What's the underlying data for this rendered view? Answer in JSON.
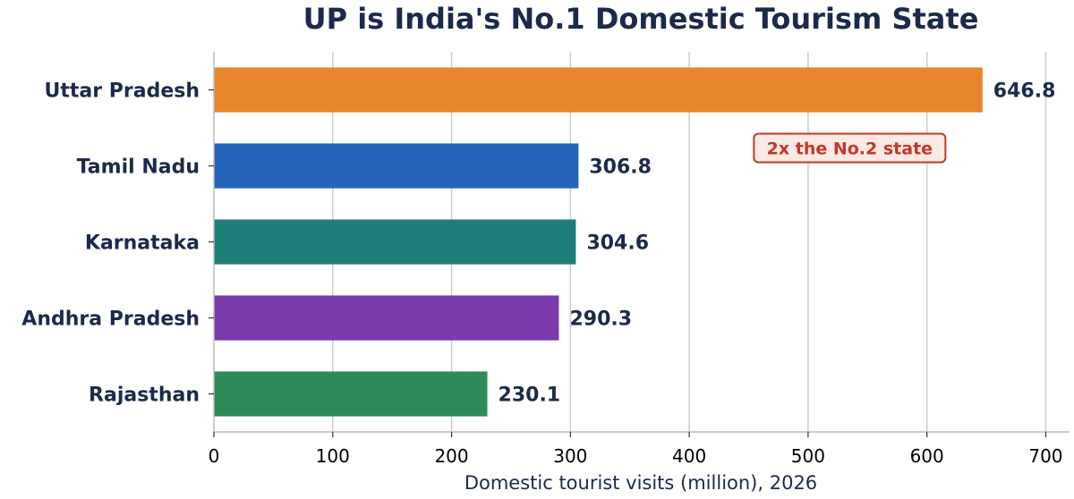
{
  "chart_data": {
    "type": "bar",
    "orientation": "horizontal",
    "title": "UP is India's No.1 Domestic Tourism State",
    "xlabel": "Domestic tourist visits (million), 2026",
    "ylabel": "",
    "categories": [
      "Uttar Pradesh",
      "Tamil Nadu",
      "Karnataka",
      "Andhra Pradesh",
      "Rajasthan"
    ],
    "values": [
      646.8,
      306.8,
      304.6,
      290.3,
      230.1
    ],
    "value_labels": [
      "646.8",
      "306.8",
      "304.6",
      "290.3",
      "230.1"
    ],
    "colors": [
      "#e8862e",
      "#2563b8",
      "#1e7e78",
      "#7b3aab",
      "#2e8b57"
    ],
    "xlim": [
      0,
      720
    ],
    "xticks": [
      0,
      100,
      200,
      300,
      400,
      500,
      600,
      700
    ],
    "xtick_labels": [
      "0",
      "100",
      "200",
      "300",
      "400",
      "500",
      "600",
      "700"
    ],
    "grid": "vertical",
    "annotation": {
      "text": "2x the No.2 state",
      "x": 535,
      "category": "Tamil Nadu",
      "text_color": "#c0392b",
      "fill_color": "#fbe9e4",
      "border_color": "#c0392b"
    }
  }
}
